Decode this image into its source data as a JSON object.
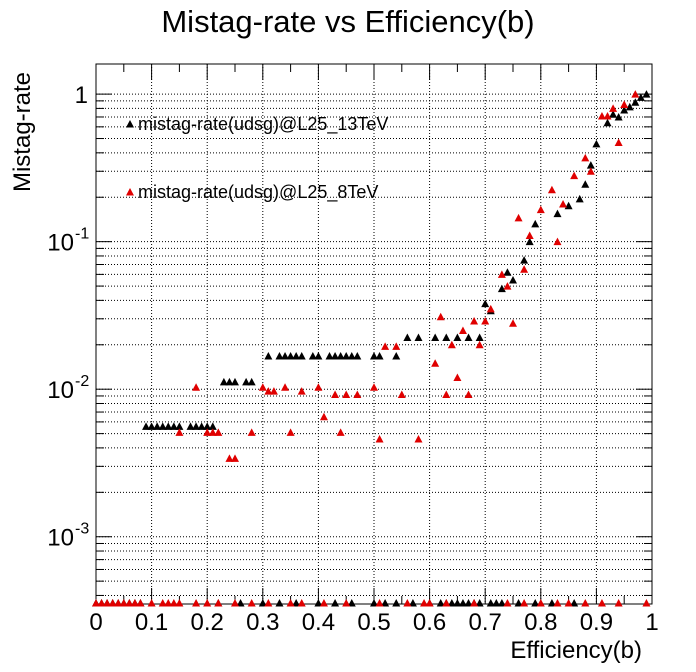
{
  "chart_data": {
    "type": "scatter",
    "title": "Mistag-rate vs Efficiency(b)",
    "xlabel": "Efficiency(b)",
    "ylabel": "Mistag-rate",
    "xlim": [
      0,
      1
    ],
    "ylim": [
      0.00035,
      1.6
    ],
    "yscale": "log",
    "grid": true,
    "legend_placement": "top-left",
    "x_ticks": [
      "0",
      "0.1",
      "0.2",
      "0.3",
      "0.4",
      "0.5",
      "0.6",
      "0.7",
      "0.8",
      "0.9",
      "1"
    ],
    "y_ticks": [
      {
        "value": 0.001,
        "base": "10",
        "exp": "-3"
      },
      {
        "value": 0.01,
        "base": "10",
        "exp": "-2"
      },
      {
        "value": 0.1,
        "base": "10",
        "exp": "-1"
      },
      {
        "value": 1,
        "base": "1",
        "exp": ""
      }
    ],
    "series": [
      {
        "name": "mistag-rate(udsg)@L25_13TeV",
        "color": "#000000",
        "marker": "triangle-up",
        "points": [
          [
            0.0,
            0.00035
          ],
          [
            0.01,
            0.00035
          ],
          [
            0.02,
            0.00035
          ],
          [
            0.03,
            0.00035
          ],
          [
            0.04,
            0.00035
          ],
          [
            0.05,
            0.00035
          ],
          [
            0.06,
            0.00035
          ],
          [
            0.07,
            0.00035
          ],
          [
            0.08,
            0.00035
          ],
          [
            0.09,
            0.0056
          ],
          [
            0.1,
            0.0056
          ],
          [
            0.11,
            0.0056
          ],
          [
            0.12,
            0.0056
          ],
          [
            0.13,
            0.0056
          ],
          [
            0.14,
            0.0056
          ],
          [
            0.15,
            0.0056
          ],
          [
            0.17,
            0.0056
          ],
          [
            0.18,
            0.0056
          ],
          [
            0.19,
            0.0056
          ],
          [
            0.2,
            0.0056
          ],
          [
            0.21,
            0.0056
          ],
          [
            0.23,
            0.0112
          ],
          [
            0.24,
            0.0112
          ],
          [
            0.25,
            0.0112
          ],
          [
            0.27,
            0.0112
          ],
          [
            0.28,
            0.0112
          ],
          [
            0.31,
            0.0168
          ],
          [
            0.33,
            0.0168
          ],
          [
            0.34,
            0.0168
          ],
          [
            0.35,
            0.0168
          ],
          [
            0.36,
            0.0168
          ],
          [
            0.37,
            0.0168
          ],
          [
            0.39,
            0.0168
          ],
          [
            0.4,
            0.0168
          ],
          [
            0.42,
            0.0168
          ],
          [
            0.43,
            0.0168
          ],
          [
            0.44,
            0.0168
          ],
          [
            0.45,
            0.0168
          ],
          [
            0.46,
            0.0168
          ],
          [
            0.47,
            0.0168
          ],
          [
            0.5,
            0.0168
          ],
          [
            0.51,
            0.0168
          ],
          [
            0.54,
            0.0168
          ],
          [
            0.56,
            0.0224
          ],
          [
            0.58,
            0.0224
          ],
          [
            0.22,
            0.00035
          ],
          [
            0.26,
            0.00035
          ],
          [
            0.3,
            0.00035
          ],
          [
            0.33,
            0.00035
          ],
          [
            0.36,
            0.00035
          ],
          [
            0.4,
            0.00035
          ],
          [
            0.43,
            0.00035
          ],
          [
            0.46,
            0.00035
          ],
          [
            0.5,
            0.00035
          ],
          [
            0.52,
            0.00035
          ],
          [
            0.54,
            0.00035
          ],
          [
            0.57,
            0.00035
          ],
          [
            0.6,
            0.00035
          ],
          [
            0.62,
            0.00035
          ],
          [
            0.63,
            0.00035
          ],
          [
            0.64,
            0.00035
          ],
          [
            0.65,
            0.00035
          ],
          [
            0.66,
            0.00035
          ],
          [
            0.67,
            0.00035
          ],
          [
            0.68,
            0.00035
          ],
          [
            0.69,
            0.00035
          ],
          [
            0.71,
            0.00035
          ],
          [
            0.72,
            0.00035
          ],
          [
            0.73,
            0.00035
          ],
          [
            0.76,
            0.00035
          ],
          [
            0.79,
            0.00035
          ],
          [
            0.82,
            0.00035
          ],
          [
            0.86,
            0.00035
          ],
          [
            0.61,
            0.0224
          ],
          [
            0.63,
            0.0224
          ],
          [
            0.65,
            0.0224
          ],
          [
            0.67,
            0.0224
          ],
          [
            0.69,
            0.0224
          ],
          [
            0.7,
            0.038
          ],
          [
            0.71,
            0.034
          ],
          [
            0.73,
            0.048
          ],
          [
            0.74,
            0.062
          ],
          [
            0.75,
            0.055
          ],
          [
            0.77,
            0.075
          ],
          [
            0.78,
            0.1
          ],
          [
            0.79,
            0.132
          ],
          [
            0.83,
            0.155
          ],
          [
            0.85,
            0.175
          ],
          [
            0.87,
            0.195
          ],
          [
            0.88,
            0.245
          ],
          [
            0.89,
            0.33
          ],
          [
            0.9,
            0.46
          ],
          [
            0.92,
            0.64
          ],
          [
            0.93,
            0.73
          ],
          [
            0.94,
            0.7
          ],
          [
            0.95,
            0.78
          ],
          [
            0.96,
            0.82
          ],
          [
            0.97,
            0.88
          ],
          [
            0.98,
            0.95
          ],
          [
            0.99,
            1.0
          ]
        ]
      },
      {
        "name": "mistag-rate(udsg)@L25_8TeV",
        "color": "#e00000",
        "marker": "triangle-up",
        "points": [
          [
            0.0,
            0.00035
          ],
          [
            0.01,
            0.00035
          ],
          [
            0.02,
            0.00035
          ],
          [
            0.03,
            0.00035
          ],
          [
            0.04,
            0.00035
          ],
          [
            0.05,
            0.00035
          ],
          [
            0.06,
            0.00035
          ],
          [
            0.07,
            0.00035
          ],
          [
            0.08,
            0.00035
          ],
          [
            0.1,
            0.00035
          ],
          [
            0.12,
            0.00035
          ],
          [
            0.13,
            0.00035
          ],
          [
            0.14,
            0.00035
          ],
          [
            0.15,
            0.00035
          ],
          [
            0.18,
            0.00035
          ],
          [
            0.2,
            0.00035
          ],
          [
            0.22,
            0.00035
          ],
          [
            0.25,
            0.00035
          ],
          [
            0.28,
            0.00035
          ],
          [
            0.31,
            0.00035
          ],
          [
            0.35,
            0.00035
          ],
          [
            0.37,
            0.00035
          ],
          [
            0.41,
            0.00035
          ],
          [
            0.45,
            0.00035
          ],
          [
            0.51,
            0.00035
          ],
          [
            0.56,
            0.00035
          ],
          [
            0.59,
            0.00035
          ],
          [
            0.6,
            0.00035
          ],
          [
            0.63,
            0.00035
          ],
          [
            0.68,
            0.00035
          ],
          [
            0.74,
            0.00035
          ],
          [
            0.77,
            0.00035
          ],
          [
            0.8,
            0.00035
          ],
          [
            0.83,
            0.00035
          ],
          [
            0.85,
            0.00035
          ],
          [
            0.88,
            0.00035
          ],
          [
            0.91,
            0.00035
          ],
          [
            0.94,
            0.00035
          ],
          [
            0.99,
            0.00035
          ],
          [
            0.15,
            0.0051
          ],
          [
            0.18,
            0.0103
          ],
          [
            0.2,
            0.0051
          ],
          [
            0.21,
            0.0051
          ],
          [
            0.22,
            0.0051
          ],
          [
            0.24,
            0.0034
          ],
          [
            0.25,
            0.0034
          ],
          [
            0.28,
            0.0051
          ],
          [
            0.3,
            0.0103
          ],
          [
            0.31,
            0.0097
          ],
          [
            0.32,
            0.0097
          ],
          [
            0.34,
            0.0103
          ],
          [
            0.35,
            0.0051
          ],
          [
            0.37,
            0.0097
          ],
          [
            0.4,
            0.0103
          ],
          [
            0.41,
            0.0065
          ],
          [
            0.43,
            0.0092
          ],
          [
            0.44,
            0.0051
          ],
          [
            0.45,
            0.0092
          ],
          [
            0.47,
            0.0092
          ],
          [
            0.5,
            0.0103
          ],
          [
            0.51,
            0.0046
          ],
          [
            0.52,
            0.0195
          ],
          [
            0.54,
            0.0195
          ],
          [
            0.55,
            0.0092
          ],
          [
            0.58,
            0.0046
          ],
          [
            0.61,
            0.015
          ],
          [
            0.62,
            0.031
          ],
          [
            0.63,
            0.0092
          ],
          [
            0.64,
            0.02
          ],
          [
            0.65,
            0.012
          ],
          [
            0.66,
            0.025
          ],
          [
            0.67,
            0.0092
          ],
          [
            0.68,
            0.029
          ],
          [
            0.69,
            0.02
          ],
          [
            0.7,
            0.029
          ],
          [
            0.71,
            0.035
          ],
          [
            0.73,
            0.06
          ],
          [
            0.74,
            0.05
          ],
          [
            0.75,
            0.028
          ],
          [
            0.76,
            0.145
          ],
          [
            0.77,
            0.065
          ],
          [
            0.78,
            0.11
          ],
          [
            0.8,
            0.165
          ],
          [
            0.82,
            0.225
          ],
          [
            0.83,
            0.1
          ],
          [
            0.84,
            0.18
          ],
          [
            0.86,
            0.28
          ],
          [
            0.88,
            0.37
          ],
          [
            0.89,
            0.3
          ],
          [
            0.91,
            0.71
          ],
          [
            0.92,
            0.71
          ],
          [
            0.93,
            0.8
          ],
          [
            0.94,
            0.47
          ],
          [
            0.95,
            0.85
          ],
          [
            0.97,
            1.0
          ]
        ]
      }
    ]
  }
}
